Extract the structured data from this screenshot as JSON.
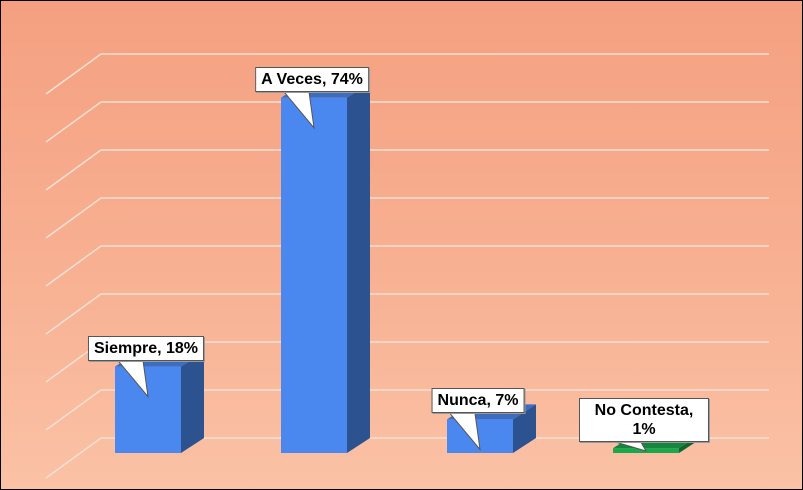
{
  "chart_data": {
    "type": "bar3d",
    "categories": [
      "Siempre",
      "A Veces",
      "Nunca",
      "No Contesta"
    ],
    "values": [
      18,
      74,
      7,
      1
    ],
    "value_labels": [
      "Siempre, 18%",
      "A Veces, 74%",
      "Nunca, 7%",
      "No Contesta, 1%"
    ],
    "colors": [
      "#4a88f0",
      "#4a88f0",
      "#4a88f0",
      "#1aa84c"
    ],
    "ylim": [
      0,
      80
    ],
    "yticks": [
      0,
      10,
      20,
      30,
      40,
      50,
      60,
      70,
      80
    ],
    "grid": true
  }
}
